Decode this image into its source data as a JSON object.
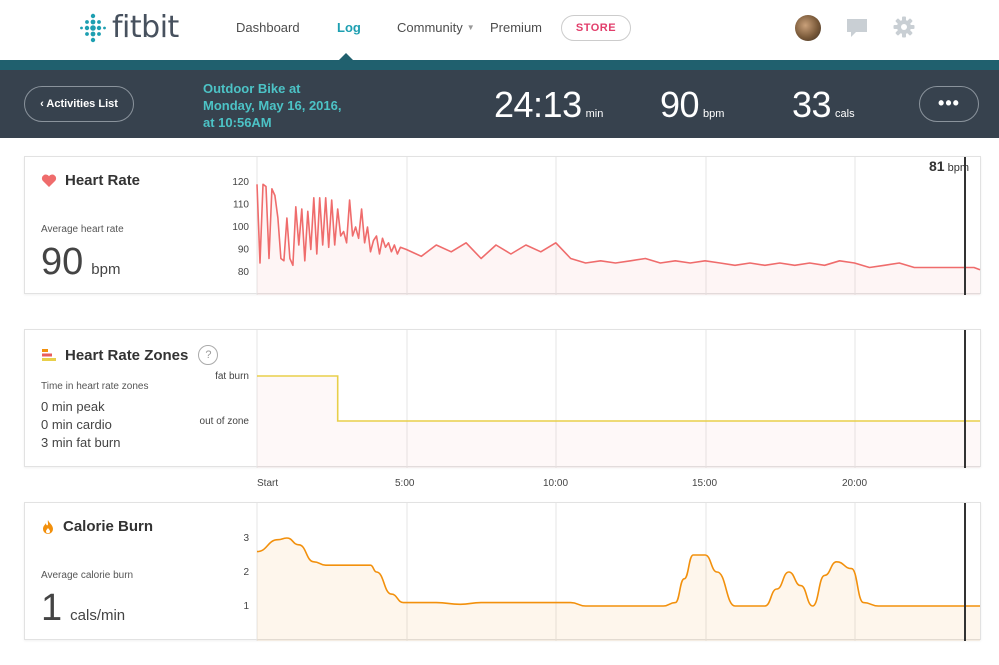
{
  "brand": {
    "name": "fitbit",
    "accent": "#1d9fb1"
  },
  "nav": {
    "items": [
      {
        "label": "Dashboard"
      },
      {
        "label": "Log",
        "active": true
      },
      {
        "label": "Community"
      },
      {
        "label": "Premium"
      }
    ],
    "store_label": "STORE",
    "icons": [
      "avatar",
      "chat-icon",
      "gear-icon"
    ]
  },
  "activity": {
    "back_label": "‹ Activities List",
    "title_line1": "Outdoor Bike at",
    "title_line2": "Monday, May 16, 2016,",
    "title_line3": "at 10:56AM",
    "duration": {
      "value": "24:13",
      "unit": "min"
    },
    "heart_rate": {
      "value": "90",
      "unit": "bpm"
    },
    "calories": {
      "value": "33",
      "unit": "cals"
    },
    "more_label": "•••"
  },
  "heart_panel": {
    "title": "Heart Rate",
    "avg_label": "Average heart rate",
    "avg_value": "90",
    "avg_unit": "bpm",
    "current_value": "81",
    "current_unit": "bpm",
    "color": "#ef6c6c"
  },
  "zones_panel": {
    "title": "Heart Rate Zones",
    "help": "?",
    "sub_label": "Time in heart rate zones",
    "lines": [
      "0 min peak",
      "0 min cardio",
      "3 min fat burn"
    ],
    "color": "#e8cf4a"
  },
  "calorie_panel": {
    "title": "Calorie Burn",
    "avg_label": "Average calorie burn",
    "avg_value": "1",
    "avg_unit": "cals/min",
    "color": "#f2900c"
  },
  "time_axis": [
    "Start",
    "5:00",
    "10:00",
    "15:00",
    "20:00"
  ],
  "chart_data": [
    {
      "type": "line",
      "title": "Heart Rate",
      "ylim": [
        75,
        125
      ],
      "yticks": [
        120,
        110,
        100,
        90,
        80
      ],
      "xlim": [
        0,
        24.2
      ],
      "series": [
        {
          "x": [
            0,
            0.1,
            0.2,
            0.3,
            0.4,
            0.5,
            0.6,
            0.7,
            0.8,
            0.9,
            1.0,
            1.1,
            1.2,
            1.3,
            1.4,
            1.5,
            1.6,
            1.7,
            1.8,
            1.9,
            2.0,
            2.1,
            2.2,
            2.3,
            2.4,
            2.5,
            2.6,
            2.7,
            2.8,
            2.9,
            3.0,
            3.1,
            3.2,
            3.3,
            3.4,
            3.5,
            3.6,
            3.7,
            3.8,
            3.9,
            4.0,
            4.1,
            4.2,
            4.3,
            4.4,
            4.5,
            4.6,
            4.7,
            4.8,
            5.0,
            5.5,
            6.0,
            6.5,
            7.0,
            7.5,
            8.0,
            8.5,
            9.0,
            9.5,
            10.0,
            10.5,
            11.0,
            11.5,
            12.0,
            12.5,
            13.0,
            13.5,
            14.0,
            14.5,
            15.0,
            15.5,
            16.0,
            16.5,
            17.0,
            17.5,
            18.0,
            18.5,
            19.0,
            19.5,
            20.0,
            20.5,
            21.0,
            21.5,
            22.0,
            22.5,
            23.0,
            23.5,
            24.0,
            24.2
          ],
          "values": [
            119,
            84,
            119,
            118,
            86,
            117,
            114,
            104,
            86,
            85,
            104,
            86,
            83,
            109,
            92,
            108,
            85,
            107,
            90,
            113,
            88,
            113,
            92,
            113,
            91,
            112,
            92,
            108,
            96,
            98,
            93,
            112,
            96,
            100,
            95,
            108,
            93,
            100,
            89,
            94,
            96,
            88,
            95,
            91,
            93,
            89,
            92,
            88,
            91,
            90,
            87,
            92,
            89,
            93,
            86,
            92,
            88,
            92,
            89,
            93,
            86,
            84,
            85,
            84,
            85,
            86,
            84,
            85,
            84,
            85,
            84,
            83,
            84,
            83,
            84,
            83,
            84,
            83,
            85,
            84,
            82,
            83,
            84,
            82,
            82,
            82,
            82,
            82,
            81
          ]
        }
      ]
    },
    {
      "type": "line",
      "title": "Heart Rate Zones",
      "categories": [
        "out of zone",
        "fat burn"
      ],
      "xlim": [
        0,
        24.2
      ],
      "series": [
        {
          "x": [
            0,
            2.7,
            2.7,
            24.2
          ],
          "values": [
            "fat burn",
            "fat burn",
            "out of zone",
            "out of zone"
          ]
        }
      ]
    },
    {
      "type": "area",
      "title": "Calorie Burn",
      "ylim": [
        0.2,
        3.5
      ],
      "yticks": [
        3,
        2,
        1
      ],
      "xlim": [
        0,
        24.2
      ],
      "series": [
        {
          "x": [
            0,
            0.7,
            1.0,
            1.4,
            1.9,
            2.3,
            2.8,
            3.5,
            3.8,
            4.0,
            4.5,
            4.9,
            5.3,
            6.0,
            6.8,
            7.5,
            8.3,
            9.0,
            9.8,
            10.5,
            11.0,
            12.0,
            13.0,
            13.6,
            14.0,
            14.3,
            14.6,
            15.0,
            15.4,
            16.0,
            16.5,
            17.0,
            17.4,
            17.8,
            18.2,
            18.6,
            19.0,
            19.4,
            19.9,
            20.3,
            20.8,
            21.5,
            22.5,
            23.5,
            24.2
          ],
          "values": [
            2.6,
            2.95,
            3.0,
            2.8,
            2.3,
            2.2,
            2.2,
            2.2,
            2.2,
            2.0,
            1.35,
            1.1,
            1.1,
            1.1,
            1.05,
            1.1,
            1.1,
            1.1,
            1.1,
            1.1,
            1.0,
            1.0,
            1.0,
            1.0,
            1.1,
            1.8,
            2.5,
            2.5,
            2.0,
            1.0,
            1.0,
            1.0,
            1.5,
            2.0,
            1.6,
            1.0,
            1.9,
            2.3,
            2.1,
            1.1,
            1.0,
            1.0,
            1.0,
            1.0,
            1.0
          ]
        }
      ]
    }
  ]
}
